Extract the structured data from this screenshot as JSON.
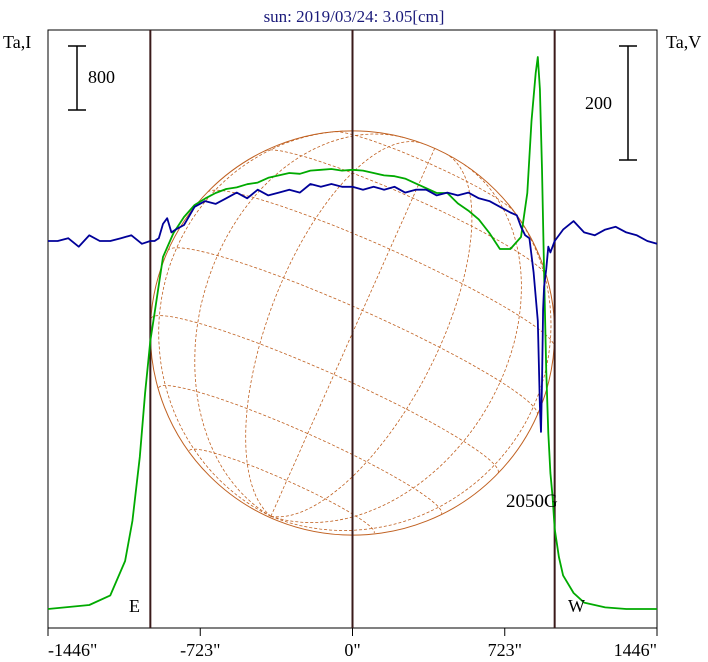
{
  "title": "sun: 2019/03/24: 3.05[cm]",
  "left_axis_label": "Ta,I",
  "right_axis_label": "Ta,V",
  "left_scale_bar": {
    "value": "800"
  },
  "right_scale_bar": {
    "value": "200"
  },
  "limb_labels": {
    "east": "E",
    "west": "W"
  },
  "annotation": "2050G",
  "colors": {
    "title": "#1a1a7a",
    "intensity": "#00aa00",
    "polarization": "#000099",
    "solar_disk": "#c06020",
    "markers": "#3a1a1a"
  },
  "chart_data": {
    "type": "line",
    "title": "sun: 2019/03/24: 3.05[cm]",
    "x_tick_labels": [
      "-1446\"",
      "-723\"",
      "0\"",
      "723\"",
      "1446\""
    ],
    "x_ticks": [
      -1446,
      -723,
      0,
      723,
      1446
    ],
    "xlim": [
      -1446,
      1446
    ],
    "xunit": "arcsec",
    "vertical_markers": [
      -960,
      0,
      960
    ],
    "solar_radius": 960,
    "grid": false,
    "series": [
      {
        "name": "Ta,I",
        "axis": "left",
        "x": [
          -1446,
          -1250,
          -1150,
          -1080,
          -1045,
          -1010,
          -985,
          -960,
          -940,
          -900,
          -850,
          -800,
          -750,
          -700,
          -650,
          -600,
          -550,
          -500,
          -450,
          -400,
          -350,
          -300,
          -250,
          -200,
          -150,
          -100,
          -50,
          0,
          50,
          100,
          150,
          200,
          250,
          300,
          350,
          400,
          450,
          500,
          550,
          600,
          650,
          700,
          750,
          800,
          830,
          850,
          870,
          880,
          890,
          900,
          910,
          920,
          930,
          940,
          950,
          960,
          980,
          1000,
          1050,
          1100,
          1200,
          1300,
          1446
        ],
        "y": [
          0,
          50,
          170,
          600,
          1100,
          1900,
          2700,
          3350,
          3700,
          4400,
          4700,
          4900,
          5050,
          5130,
          5200,
          5250,
          5270,
          5310,
          5330,
          5390,
          5420,
          5450,
          5440,
          5480,
          5490,
          5500,
          5480,
          5490,
          5480,
          5450,
          5420,
          5410,
          5380,
          5320,
          5260,
          5200,
          5200,
          5070,
          4980,
          4870,
          4700,
          4500,
          4500,
          4650,
          5200,
          6100,
          6700,
          6900,
          6500,
          5500,
          4200,
          3000,
          2200,
          1700,
          1400,
          1000,
          650,
          420,
          200,
          80,
          20,
          0,
          0
        ]
      },
      {
        "name": "Ta,V",
        "axis": "right",
        "x": [
          -1446,
          -1400,
          -1350,
          -1300,
          -1250,
          -1200,
          -1150,
          -1100,
          -1050,
          -1000,
          -960,
          -940,
          -920,
          -900,
          -880,
          -860,
          -840,
          -800,
          -750,
          -700,
          -650,
          -600,
          -550,
          -500,
          -450,
          -400,
          -350,
          -300,
          -250,
          -200,
          -150,
          -100,
          -50,
          0,
          50,
          100,
          150,
          200,
          250,
          300,
          350,
          400,
          450,
          500,
          550,
          600,
          650,
          700,
          750,
          780,
          800,
          820,
          840,
          860,
          880,
          890,
          895,
          900,
          905,
          910,
          920,
          930,
          940,
          960,
          1000,
          1050,
          1100,
          1150,
          1200,
          1250,
          1300,
          1350,
          1400,
          1446
        ],
        "y": [
          0,
          0,
          5,
          -10,
          10,
          0,
          0,
          5,
          10,
          -5,
          0,
          0,
          5,
          30,
          40,
          15,
          20,
          28,
          60,
          70,
          65,
          75,
          85,
          75,
          90,
          80,
          85,
          90,
          85,
          100,
          95,
          100,
          95,
          95,
          90,
          95,
          90,
          95,
          85,
          90,
          90,
          80,
          85,
          80,
          85,
          75,
          70,
          60,
          50,
          45,
          25,
          10,
          5,
          -55,
          -140,
          -290,
          -335,
          -250,
          -120,
          -80,
          -50,
          -10,
          -20,
          0,
          20,
          35,
          15,
          10,
          20,
          25,
          15,
          10,
          0,
          -5
        ]
      }
    ]
  }
}
